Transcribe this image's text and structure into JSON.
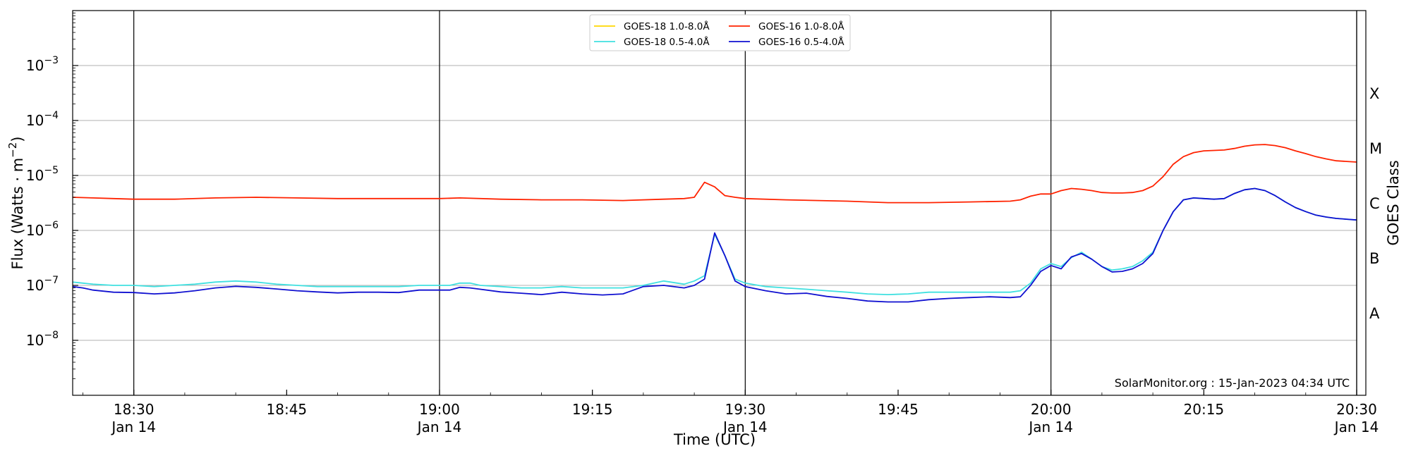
{
  "chart_data": {
    "type": "line",
    "title": "",
    "xlabel": "Time (UTC)",
    "ylabel": "Flux (Watts · m⁻²)",
    "right_ylabel": "GOES Class",
    "y_scale": "log",
    "ylim": [
      1e-09,
      0.01
    ],
    "xlim": [
      "2023-01-14 18:24",
      "2023-01-14 20:30"
    ],
    "grid": "horizontal",
    "legend_position": "top-center",
    "y_ticks": [
      {
        "value": 1e-08,
        "base": "10",
        "exp": "−8"
      },
      {
        "value": 1e-07,
        "base": "10",
        "exp": "−7"
      },
      {
        "value": 1e-06,
        "base": "10",
        "exp": "−6"
      },
      {
        "value": 1e-05,
        "base": "10",
        "exp": "−5"
      },
      {
        "value": 0.0001,
        "base": "10",
        "exp": "−4"
      },
      {
        "value": 0.001,
        "base": "10",
        "exp": "−3"
      }
    ],
    "x_ticks": [
      {
        "time": "18:30",
        "label": "18:30",
        "date": "Jan 14"
      },
      {
        "time": "18:45",
        "label": "18:45",
        "date": ""
      },
      {
        "time": "19:00",
        "label": "19:00",
        "date": "Jan 14"
      },
      {
        "time": "19:15",
        "label": "19:15",
        "date": ""
      },
      {
        "time": "19:30",
        "label": "19:30",
        "date": "Jan 14"
      },
      {
        "time": "19:45",
        "label": "19:45",
        "date": ""
      },
      {
        "time": "20:00",
        "label": "20:00",
        "date": "Jan 14"
      },
      {
        "time": "20:15",
        "label": "20:15",
        "date": ""
      },
      {
        "time": "20:30",
        "label": "20:30",
        "date": "Jan 14"
      }
    ],
    "vertical_lines": [
      "18:30",
      "19:00",
      "19:30",
      "20:00",
      "20:30"
    ],
    "goes_classes": [
      {
        "label": "A",
        "value": 3.16e-08
      },
      {
        "label": "B",
        "value": 3.16e-07
      },
      {
        "label": "C",
        "value": 3.16e-06
      },
      {
        "label": "M",
        "value": 3.16e-05
      },
      {
        "label": "X",
        "value": 0.000316
      }
    ],
    "series": [
      {
        "name": "GOES-18 1.0-8.0Å",
        "color": "#ffd700",
        "x": [],
        "y": []
      },
      {
        "name": "GOES-18 0.5-4.0Å",
        "color": "#40e0e0",
        "x": [
          "18:24",
          "18:25",
          "18:26",
          "18:28",
          "18:30",
          "18:32",
          "18:34",
          "18:36",
          "18:38",
          "18:40",
          "18:42",
          "18:44",
          "18:46",
          "18:48",
          "18:50",
          "18:52",
          "18:54",
          "18:56",
          "18:58",
          "19:00",
          "19:01",
          "19:02",
          "19:03",
          "19:04",
          "19:06",
          "19:08",
          "19:10",
          "19:12",
          "19:14",
          "19:16",
          "19:18",
          "19:20",
          "19:22",
          "19:24",
          "19:25",
          "19:26",
          "19:27",
          "19:28",
          "19:29",
          "19:30",
          "19:32",
          "19:34",
          "19:36",
          "19:38",
          "19:40",
          "19:42",
          "19:44",
          "19:46",
          "19:48",
          "19:50",
          "19:52",
          "19:54",
          "19:56",
          "19:57",
          "19:58",
          "19:59",
          "20:00",
          "20:01",
          "20:02",
          "20:03",
          "20:04",
          "20:05",
          "20:06",
          "20:07",
          "20:08",
          "20:09",
          "20:10",
          "20:11",
          "20:12",
          "20:13",
          "20:14",
          "20:15",
          "20:16",
          "20:17",
          "20:18",
          "20:19",
          "20:20",
          "20:21",
          "20:22",
          "20:23",
          "20:24",
          "20:25",
          "20:26",
          "20:27",
          "20:28",
          "20:29",
          "20:30"
        ],
        "y": [
          1.15e-07,
          1.1e-07,
          1.05e-07,
          1e-07,
          1e-07,
          9.5e-08,
          1e-07,
          1.05e-07,
          1.15e-07,
          1.2e-07,
          1.15e-07,
          1.05e-07,
          1e-07,
          9.5e-08,
          9.5e-08,
          9.5e-08,
          9.5e-08,
          9.5e-08,
          1e-07,
          1e-07,
          1e-07,
          1.1e-07,
          1.1e-07,
          1e-07,
          9.5e-08,
          9e-08,
          9e-08,
          9.5e-08,
          9e-08,
          9e-08,
          9e-08,
          1e-07,
          1.2e-07,
          1.05e-07,
          1.2e-07,
          1.5e-07,
          8.5e-07,
          3.5e-07,
          1.3e-07,
          1.1e-07,
          9.5e-08,
          9e-08,
          8.5e-08,
          8e-08,
          7.5e-08,
          7e-08,
          6.8e-08,
          7e-08,
          7.5e-08,
          7.5e-08,
          7.5e-08,
          7.5e-08,
          7.5e-08,
          8e-08,
          1.1e-07,
          2e-07,
          2.5e-07,
          2.2e-07,
          3.2e-07,
          4e-07,
          3e-07,
          2.2e-07,
          1.9e-07,
          2e-07,
          2.2e-07,
          2.8e-07,
          4e-07,
          1e-06,
          2.2e-06,
          3.6e-06,
          3.9e-06,
          3.8e-06,
          3.7e-06,
          3.8e-06,
          4.7e-06,
          5.5e-06,
          5.8e-06,
          5.3e-06,
          4.3e-06,
          3.3e-06,
          2.6e-06,
          2.2e-06,
          1.9e-06,
          1.75e-06,
          1.65e-06,
          1.6e-06,
          1.55e-06
        ]
      },
      {
        "name": "GOES-16 1.0-8.0Å",
        "color": "#ff2200",
        "x": [
          "18:24",
          "18:26",
          "18:28",
          "18:30",
          "18:34",
          "18:38",
          "18:42",
          "18:46",
          "18:50",
          "18:54",
          "18:58",
          "19:00",
          "19:02",
          "19:06",
          "19:10",
          "19:14",
          "19:18",
          "19:22",
          "19:24",
          "19:25",
          "19:26",
          "19:27",
          "19:28",
          "19:29",
          "19:30",
          "19:34",
          "19:40",
          "19:44",
          "19:48",
          "19:52",
          "19:56",
          "19:57",
          "19:58",
          "19:59",
          "20:00",
          "20:01",
          "20:02",
          "20:03",
          "20:04",
          "20:05",
          "20:06",
          "20:07",
          "20:08",
          "20:09",
          "20:10",
          "20:11",
          "20:12",
          "20:13",
          "20:14",
          "20:15",
          "20:16",
          "20:17",
          "20:18",
          "20:19",
          "20:20",
          "20:21",
          "20:22",
          "20:23",
          "20:24",
          "20:25",
          "20:26",
          "20:27",
          "20:28",
          "20:29",
          "20:30"
        ],
        "y": [
          4e-06,
          3.9e-06,
          3.8e-06,
          3.7e-06,
          3.7e-06,
          3.9e-06,
          4e-06,
          3.9e-06,
          3.8e-06,
          3.8e-06,
          3.8e-06,
          3.8e-06,
          3.9e-06,
          3.7e-06,
          3.6e-06,
          3.6e-06,
          3.5e-06,
          3.7e-06,
          3.8e-06,
          4e-06,
          7.5e-06,
          6.2e-06,
          4.3e-06,
          4e-06,
          3.8e-06,
          3.6e-06,
          3.4e-06,
          3.2e-06,
          3.2e-06,
          3.3e-06,
          3.4e-06,
          3.6e-06,
          4.2e-06,
          4.6e-06,
          4.6e-06,
          5.3e-06,
          5.8e-06,
          5.6e-06,
          5.3e-06,
          4.9e-06,
          4.8e-06,
          4.8e-06,
          4.9e-06,
          5.3e-06,
          6.4e-06,
          9.5e-06,
          1.6e-05,
          2.2e-05,
          2.6e-05,
          2.8e-05,
          2.85e-05,
          2.9e-05,
          3.1e-05,
          3.4e-05,
          3.6e-05,
          3.65e-05,
          3.5e-05,
          3.2e-05,
          2.8e-05,
          2.5e-05,
          2.2e-05,
          2e-05,
          1.85e-05,
          1.8e-05,
          1.75e-05
        ]
      },
      {
        "name": "GOES-16 0.5-4.0Å",
        "color": "#1010d0",
        "x": [
          "18:24",
          "18:25",
          "18:26",
          "18:28",
          "18:30",
          "18:32",
          "18:34",
          "18:36",
          "18:38",
          "18:40",
          "18:42",
          "18:44",
          "18:46",
          "18:48",
          "18:50",
          "18:52",
          "18:54",
          "18:56",
          "18:58",
          "19:00",
          "19:01",
          "19:02",
          "19:03",
          "19:04",
          "19:06",
          "19:08",
          "19:10",
          "19:12",
          "19:14",
          "19:16",
          "19:18",
          "19:20",
          "19:22",
          "19:24",
          "19:25",
          "19:26",
          "19:27",
          "19:28",
          "19:29",
          "19:30",
          "19:32",
          "19:34",
          "19:36",
          "19:38",
          "19:40",
          "19:42",
          "19:44",
          "19:46",
          "19:48",
          "19:50",
          "19:52",
          "19:54",
          "19:56",
          "19:57",
          "19:58",
          "19:59",
          "20:00",
          "20:01",
          "20:02",
          "20:03",
          "20:04",
          "20:05",
          "20:06",
          "20:07",
          "20:08",
          "20:09",
          "20:10",
          "20:11",
          "20:12",
          "20:13",
          "20:14",
          "20:15",
          "20:16",
          "20:17",
          "20:18",
          "20:19",
          "20:20",
          "20:21",
          "20:22",
          "20:23",
          "20:24",
          "20:25",
          "20:26",
          "20:27",
          "20:28",
          "20:29",
          "20:30"
        ],
        "y": [
          9.5e-08,
          9e-08,
          8.2e-08,
          7.5e-08,
          7.4e-08,
          7e-08,
          7.3e-08,
          8e-08,
          9e-08,
          9.6e-08,
          9.2e-08,
          8.6e-08,
          8e-08,
          7.6e-08,
          7.3e-08,
          7.5e-08,
          7.5e-08,
          7.4e-08,
          8.2e-08,
          8.2e-08,
          8.2e-08,
          9.2e-08,
          9e-08,
          8.5e-08,
          7.6e-08,
          7.2e-08,
          6.8e-08,
          7.5e-08,
          7e-08,
          6.7e-08,
          7e-08,
          9.5e-08,
          1e-07,
          9e-08,
          1e-07,
          1.3e-07,
          9e-07,
          3.5e-07,
          1.2e-07,
          9.5e-08,
          8e-08,
          7e-08,
          7.2e-08,
          6.3e-08,
          5.8e-08,
          5.2e-08,
          5e-08,
          5e-08,
          5.5e-08,
          5.8e-08,
          6e-08,
          6.2e-08,
          6e-08,
          6.2e-08,
          1e-07,
          1.8e-07,
          2.3e-07,
          2e-07,
          3.3e-07,
          3.8e-07,
          3e-07,
          2.2e-07,
          1.75e-07,
          1.8e-07,
          2e-07,
          2.5e-07,
          3.8e-07,
          1e-06,
          2.2e-06,
          3.6e-06,
          3.9e-06,
          3.8e-06,
          3.7e-06,
          3.8e-06,
          4.7e-06,
          5.5e-06,
          5.8e-06,
          5.3e-06,
          4.3e-06,
          3.3e-06,
          2.6e-06,
          2.2e-06,
          1.9e-06,
          1.75e-06,
          1.65e-06,
          1.6e-06,
          1.55e-06
        ]
      }
    ],
    "annotation": "SolarMonitor.org : 15-Jan-2023 04:34 UTC"
  }
}
